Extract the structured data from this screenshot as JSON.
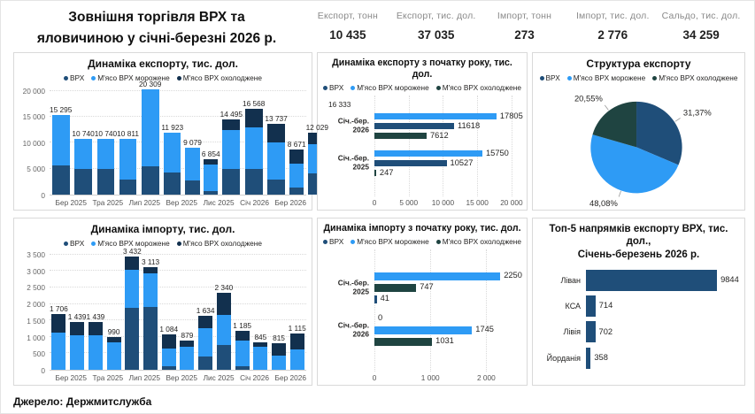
{
  "header": {
    "title": "Зовнішня торгівля ВРХ та\nяловичиною у січні-березні 2026 р.",
    "kpis": [
      {
        "label": "Експорт, тонн",
        "value": "10 435"
      },
      {
        "label": "Експорт, тис. дол.",
        "value": "37 035"
      },
      {
        "label": "Імпорт, тонн",
        "value": "273"
      },
      {
        "label": "Імпорт, тис. дол.",
        "value": "2 776"
      },
      {
        "label": "Сальдо, тис. дол.",
        "value": "34 259"
      }
    ]
  },
  "footer": {
    "source": "Джерело: Держмитслужба"
  },
  "legend": [
    "ВРХ",
    "М'ясо ВРХ морожене",
    "М'ясо ВРХ охолоджене"
  ],
  "colors": {
    "vrx": "#1F4E79",
    "frozen": "#2E9BF5",
    "chilled_dark": "#12304E",
    "chilled_teal": "#1F4441",
    "grid": "#D9D9D9",
    "axis_text": "#666666",
    "label_text": "#252423"
  },
  "chart_data": [
    {
      "id": "export_monthly",
      "type": "bar",
      "stacked": true,
      "orientation": "vertical",
      "title": "Динаміка експорту, тис. дол.",
      "ymax": 21000,
      "y_ticks": [
        {
          "value": 20000,
          "label": "20 000"
        },
        {
          "value": 15000,
          "label": "15 000"
        },
        {
          "value": 10000,
          "label": "10 000"
        },
        {
          "value": 5000,
          "label": "5 000"
        },
        {
          "value": 0,
          "label": "0"
        }
      ],
      "x_tick_labels": [
        "",
        "Бер 2025",
        "",
        "Тра 2025",
        "",
        "Лип 2025",
        "",
        "Вер 2025",
        "",
        "Лис 2025",
        "",
        "Січ 2026",
        "",
        "Бер 2026"
      ],
      "totals": [
        15295,
        10740,
        10740,
        10811,
        20309,
        11923,
        9079,
        6854,
        14495,
        16568,
        13737,
        8671,
        12029,
        16333
      ],
      "totals_display": [
        "15 295",
        "10 740",
        "10 740",
        "10 811",
        "20 309",
        "11 923",
        "9 079",
        "6 854",
        "14 495",
        "16 568",
        "13 737",
        "8 671",
        "12 029",
        "16 333"
      ],
      "series": [
        {
          "name": "ВРХ",
          "key": "vrx",
          "values": [
            5600,
            4950,
            4950,
            2900,
            5400,
            4200,
            2700,
            740,
            4900,
            5010,
            2850,
            1300,
            4160,
            5410
          ]
        },
        {
          "name": "М'ясо ВРХ морожене",
          "key": "frozen",
          "values": [
            9695,
            5790,
            5790,
            7911,
            14909,
            7723,
            6379,
            5130,
            7520,
            7980,
            7180,
            4700,
            5530,
            7470
          ]
        },
        {
          "name": "М'ясо ВРХ охолоджене",
          "key": "chilled",
          "values": [
            0,
            0,
            0,
            0,
            0,
            0,
            0,
            984,
            2075,
            3578,
            3707,
            2671,
            2339,
            3453
          ]
        }
      ],
      "chilled_color": "chilled_dark"
    },
    {
      "id": "export_ytd",
      "type": "bar",
      "orientation": "horizontal",
      "grouped": true,
      "title": "Динаміка експорту з початку року, тис. дол.",
      "xmax": 20400,
      "x_ticks": [
        {
          "value": 0,
          "label": "0"
        },
        {
          "value": 5000,
          "label": "5 000"
        },
        {
          "value": 10000,
          "label": "10 000"
        },
        {
          "value": 15000,
          "label": "15 000"
        },
        {
          "value": 20000,
          "label": "20 000"
        }
      ],
      "groups": [
        {
          "label": "Січ.-бер. 2026",
          "bars": [
            {
              "series": "М'ясо ВРХ морожене",
              "key": "frozen",
              "value": 17805,
              "label": "17805"
            },
            {
              "series": "ВРХ",
              "key": "vrx",
              "value": 11618,
              "label": "11618"
            },
            {
              "series": "М'ясо ВРХ охолоджене",
              "key": "chilled",
              "value": 7612,
              "label": "7612"
            }
          ]
        },
        {
          "label": "Січ.-бер. 2025",
          "bars": [
            {
              "series": "М'ясо ВРХ морожене",
              "key": "frozen",
              "value": 15750,
              "label": "15750"
            },
            {
              "series": "ВРХ",
              "key": "vrx",
              "value": 10527,
              "label": "10527"
            },
            {
              "series": "М'ясо ВРХ охолоджене",
              "key": "chilled",
              "value": 247,
              "label": "247"
            }
          ]
        }
      ],
      "chilled_color": "chilled_teal"
    },
    {
      "id": "export_structure",
      "type": "pie",
      "title": "Структура експорту",
      "slices": [
        {
          "label": "ВРХ",
          "key": "vrx",
          "pct": 31.37,
          "display": "31,37%"
        },
        {
          "label": "М'ясо ВРХ морожене",
          "key": "frozen",
          "pct": 48.08,
          "display": "48,08%"
        },
        {
          "label": "М'ясо ВРХ охолоджене",
          "key": "chilled",
          "pct": 20.55,
          "display": "20,55%"
        }
      ],
      "chilled_color": "chilled_teal"
    },
    {
      "id": "import_monthly",
      "type": "bar",
      "stacked": true,
      "orientation": "vertical",
      "title": "Динаміка імпорту, тис. дол.",
      "ymax": 3600,
      "y_ticks": [
        {
          "value": 3500,
          "label": "3 500"
        },
        {
          "value": 3000,
          "label": "3 000"
        },
        {
          "value": 2500,
          "label": "2 500"
        },
        {
          "value": 2000,
          "label": "2 000"
        },
        {
          "value": 1500,
          "label": "1 500"
        },
        {
          "value": 1000,
          "label": "1 000"
        },
        {
          "value": 500,
          "label": "500"
        },
        {
          "value": 0,
          "label": "0"
        }
      ],
      "x_tick_labels": [
        "",
        "Бер 2025",
        "",
        "Тра 2025",
        "",
        "Лип 2025",
        "",
        "Вер 2025",
        "",
        "Лис 2025",
        "",
        "Січ 2026",
        "",
        "Бер 2026"
      ],
      "totals": [
        1706,
        1439,
        1439,
        990,
        3432,
        3113,
        1084,
        879,
        1634,
        2340,
        1185,
        845,
        815,
        1115
      ],
      "totals_display": [
        "1 706",
        "1 439",
        "1 439",
        "990",
        "3 432",
        "3 113",
        "1 084",
        "879",
        "1 634",
        "2 340",
        "1 185",
        "845",
        "815",
        "1 115"
      ],
      "series": [
        {
          "name": "ВРХ",
          "key": "vrx",
          "values": [
            0,
            0,
            0,
            0,
            1870,
            1900,
            120,
            0,
            390,
            760,
            100,
            0,
            0,
            0
          ]
        },
        {
          "name": "М'ясо ВРХ морожене",
          "key": "frozen",
          "values": [
            1130,
            1060,
            1060,
            840,
            1170,
            1020,
            520,
            690,
            870,
            910,
            800,
            700,
            420,
            630
          ]
        },
        {
          "name": "М'ясо ВРХ охолоджене",
          "key": "chilled",
          "values": [
            576,
            379,
            379,
            150,
            392,
            193,
            444,
            189,
            374,
            670,
            285,
            145,
            395,
            485
          ]
        }
      ],
      "chilled_color": "chilled_dark"
    },
    {
      "id": "import_ytd",
      "type": "bar",
      "orientation": "horizontal",
      "grouped": true,
      "title": "Динаміка імпорту з початку року, тис. дол.",
      "xmax": 2500,
      "x_ticks": [
        {
          "value": 0,
          "label": "0"
        },
        {
          "value": 1000,
          "label": "1 000"
        },
        {
          "value": 2000,
          "label": "2 000"
        }
      ],
      "groups": [
        {
          "label": "Січ.-бер. 2025",
          "bars": [
            {
              "series": "М'ясо ВРХ морожене",
              "key": "frozen",
              "value": 2250,
              "label": "2250"
            },
            {
              "series": "М'ясо ВРХ охолоджене",
              "key": "chilled",
              "value": 747,
              "label": "747"
            },
            {
              "series": "ВРХ",
              "key": "vrx",
              "value": 41,
              "label": "41"
            }
          ]
        },
        {
          "label": "Січ.-бер. 2026",
          "bars": [
            {
              "series": "ВРХ",
              "key": "vrx",
              "value": 0,
              "label": "0"
            },
            {
              "series": "М'ясо ВРХ морожене",
              "key": "frozen",
              "value": 1745,
              "label": "1745"
            },
            {
              "series": "М'ясо ВРХ охолоджене",
              "key": "chilled",
              "value": 1031,
              "label": "1031"
            }
          ]
        }
      ],
      "chilled_color": "chilled_teal"
    },
    {
      "id": "top5_export",
      "type": "bar",
      "orientation": "horizontal",
      "title": "Топ-5 напрямків експорту ВРХ, тис. дол.,\nСічень-березень 2026 р.",
      "categories": [
        "Ліван",
        "КСА",
        "Лівія",
        "Йорданія"
      ],
      "values": [
        9844,
        714,
        702,
        358
      ],
      "values_display": [
        "9844",
        "714",
        "702",
        "358"
      ],
      "xmax": 11500
    }
  ]
}
